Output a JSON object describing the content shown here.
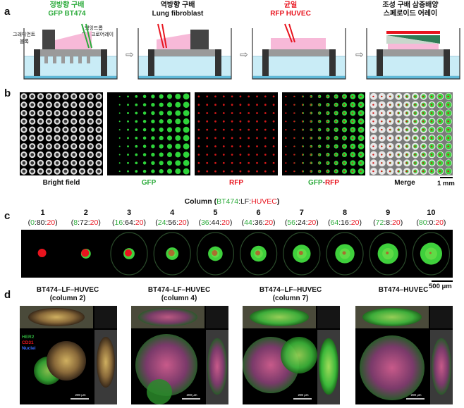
{
  "panels": {
    "a": "a",
    "b": "b",
    "c": "c",
    "d": "d"
  },
  "panel_a": {
    "steps": [
      {
        "title_line1": "정방향 구배",
        "title_line2": "GFP BT474",
        "label_gradient": "그래디언트",
        "label_block": "블록",
        "label_pillar": "행잉드롭",
        "label_array": "마이크로어레이"
      },
      {
        "title_line1": "역방향 구배",
        "title_line2": "Lung fibroblast"
      },
      {
        "title_line1": "균일",
        "title_line2": "RFP HUVEC"
      },
      {
        "title_line1": "조성 구배 삼중배양",
        "title_line2": "스페로이드 어레이"
      }
    ],
    "arrow_glyph": "⇨"
  },
  "panel_b": {
    "captions": [
      "Bright field",
      "GFP",
      "RFP",
      "GFP-RFP",
      "Merge"
    ],
    "merge_caption_parts": {
      "gfp": "GFP",
      "dash": "-",
      "rfp": "RFP"
    },
    "scale": "1 mm"
  },
  "panel_c": {
    "header_prefix": "Column (",
    "header_bt": "BT474",
    "header_sep1": ":LF:",
    "header_hu": "HUVEC",
    "header_suffix": ")",
    "columns": [
      {
        "num": "1",
        "bt": "0",
        "lf": "80",
        "hu": "20"
      },
      {
        "num": "2",
        "bt": "8",
        "lf": "72",
        "hu": "20"
      },
      {
        "num": "3",
        "bt": "16",
        "lf": "64",
        "hu": "20"
      },
      {
        "num": "4",
        "bt": "24",
        "lf": "56",
        "hu": "20"
      },
      {
        "num": "5",
        "bt": "36",
        "lf": "44",
        "hu": "20"
      },
      {
        "num": "6",
        "bt": "44",
        "lf": "36",
        "hu": "20"
      },
      {
        "num": "7",
        "bt": "56",
        "lf": "24",
        "hu": "20"
      },
      {
        "num": "8",
        "bt": "64",
        "lf": "16",
        "hu": "20"
      },
      {
        "num": "9",
        "bt": "72",
        "lf": "8",
        "hu": "20"
      },
      {
        "num": "10",
        "bt": "80",
        "lf": "0",
        "hu": "20"
      }
    ],
    "scale": "500 μm"
  },
  "panel_d": {
    "items": [
      {
        "title_line1": "BT474–LF–HUVEC",
        "title_line2": "(column 2)",
        "scale": "200 μm"
      },
      {
        "title_line1": "BT474–LF–HUVEC",
        "title_line2": "(column 4)",
        "scale": "200 μm"
      },
      {
        "title_line1": "BT474–LF–HUVEC",
        "title_line2": "(column 7)",
        "scale": "200 μm"
      },
      {
        "title_line1": "BT474–HUVEC",
        "title_line2": "",
        "scale": "200 μm"
      }
    ],
    "legend": {
      "her2": "HER2",
      "cd31": "CD31",
      "nuclei": "Nuclei"
    }
  },
  "colors": {
    "gfp": "#2dab3c",
    "rfp": "#e8141e",
    "nuclei": "#3a6cff"
  }
}
